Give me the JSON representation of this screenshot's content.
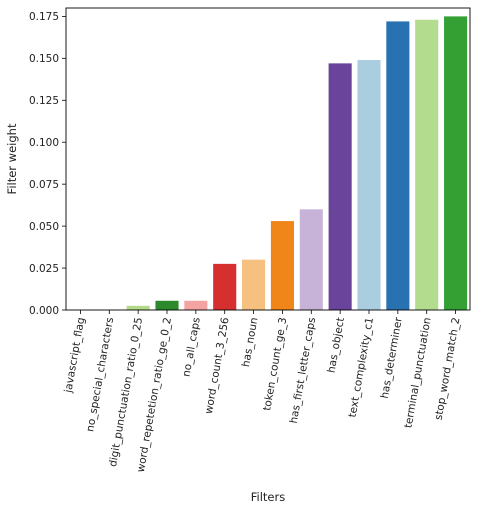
{
  "chart_data": {
    "type": "bar",
    "xlabel": "Filters",
    "ylabel": "Filter weight",
    "ylim": [
      0,
      0.18
    ],
    "yticks": [
      "0.000",
      "0.025",
      "0.050",
      "0.075",
      "0.100",
      "0.125",
      "0.150",
      "0.175"
    ],
    "grid": false,
    "categories": [
      "javascript_flag",
      "no_special_characters",
      "digit_punctuation_ratio_0_25",
      "word_repetetion_ratio_ge_0_2",
      "no_all_caps",
      "word_count_3_256",
      "has_noun",
      "token_count_ge_3",
      "has_first_letter_caps",
      "has_object",
      "text_complexity_c1",
      "has_determiner",
      "terminal_punctuation",
      "stop_word_match_2"
    ],
    "values": [
      0.0,
      0.0,
      0.0025,
      0.0055,
      0.0055,
      0.0275,
      0.03,
      0.053,
      0.06,
      0.147,
      0.149,
      0.172,
      0.173,
      0.175
    ],
    "colors": [
      "#1f77b4",
      "#ff7f0e",
      "#b5d98a",
      "#2c8a2c",
      "#f4a3a3",
      "#d62f2f",
      "#f5c080",
      "#f0851a",
      "#c8b3d8",
      "#6a449a",
      "#abcde0",
      "#2872b1",
      "#b4dc8e",
      "#34a034"
    ]
  }
}
